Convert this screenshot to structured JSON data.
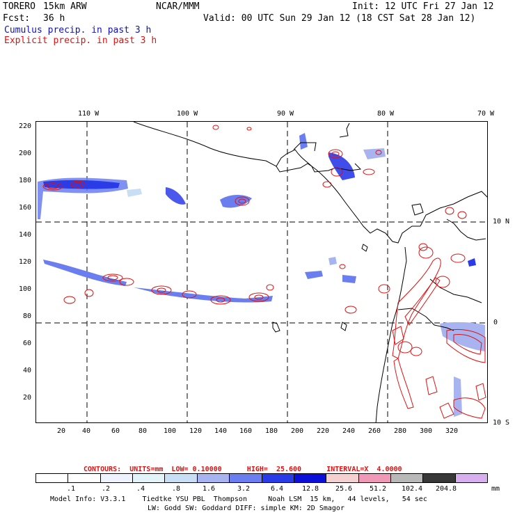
{
  "header": {
    "model": "TORERO",
    "resolution": "15km ARW",
    "org": "NCAR/MMM",
    "init": "Init: 12 UTC Fri 27 Jan 12",
    "fcst_label": "Fcst:",
    "fcst_value": "36 h",
    "valid": "Valid: 00 UTC Sun 29 Jan 12 (18 CST Sat 28 Jan 12)",
    "line_blue": "Cumulus precip. in past 3 h",
    "line_red": "Explicit precip. in past 3 h"
  },
  "map": {
    "lon_labels": [
      "110 W",
      "100 W",
      "90 W",
      "80 W",
      "70 W"
    ],
    "lat_labels": [
      "10 N",
      "0",
      "10 S"
    ],
    "y_ticks": [
      "220",
      "200",
      "180",
      "160",
      "140",
      "120",
      "100",
      "80",
      "60",
      "40",
      "20"
    ],
    "x_ticks": [
      "20",
      "40",
      "60",
      "80",
      "100",
      "120",
      "140",
      "160",
      "180",
      "200",
      "220",
      "240",
      "260",
      "280",
      "300",
      "320"
    ]
  },
  "contours_line": "CONTOURS:  UNITS=mm  LOW= 0.10000      HIGH=  25.600      INTERVAL=X  4.0000",
  "legend": {
    "labels": [
      ".1",
      ".2",
      ".4",
      ".8",
      "1.6",
      "3.2",
      "6.4",
      "12.8",
      "25.6",
      "51.2",
      "102.4",
      "204.8"
    ],
    "unit": "mm",
    "colors": [
      "#ffffff",
      "#ffffff",
      "#eef3ff",
      "#e2f4f8",
      "#c8def4",
      "#a8b4f0",
      "#6a7ef0",
      "#2a3be8",
      "#0c10d8",
      "#f4d0d0",
      "#f098b8",
      "#b8b8b8",
      "#383838",
      "#d8b0f0"
    ]
  },
  "footer": {
    "line1": "Model Info: V3.3.1    Tiedtke YSU PBL  Thompson     Noah LSM  15 km,   44 levels,   54 sec",
    "line2": "LW: Godd SW: Goddard DIFF: simple KM: 2D Smagor"
  }
}
